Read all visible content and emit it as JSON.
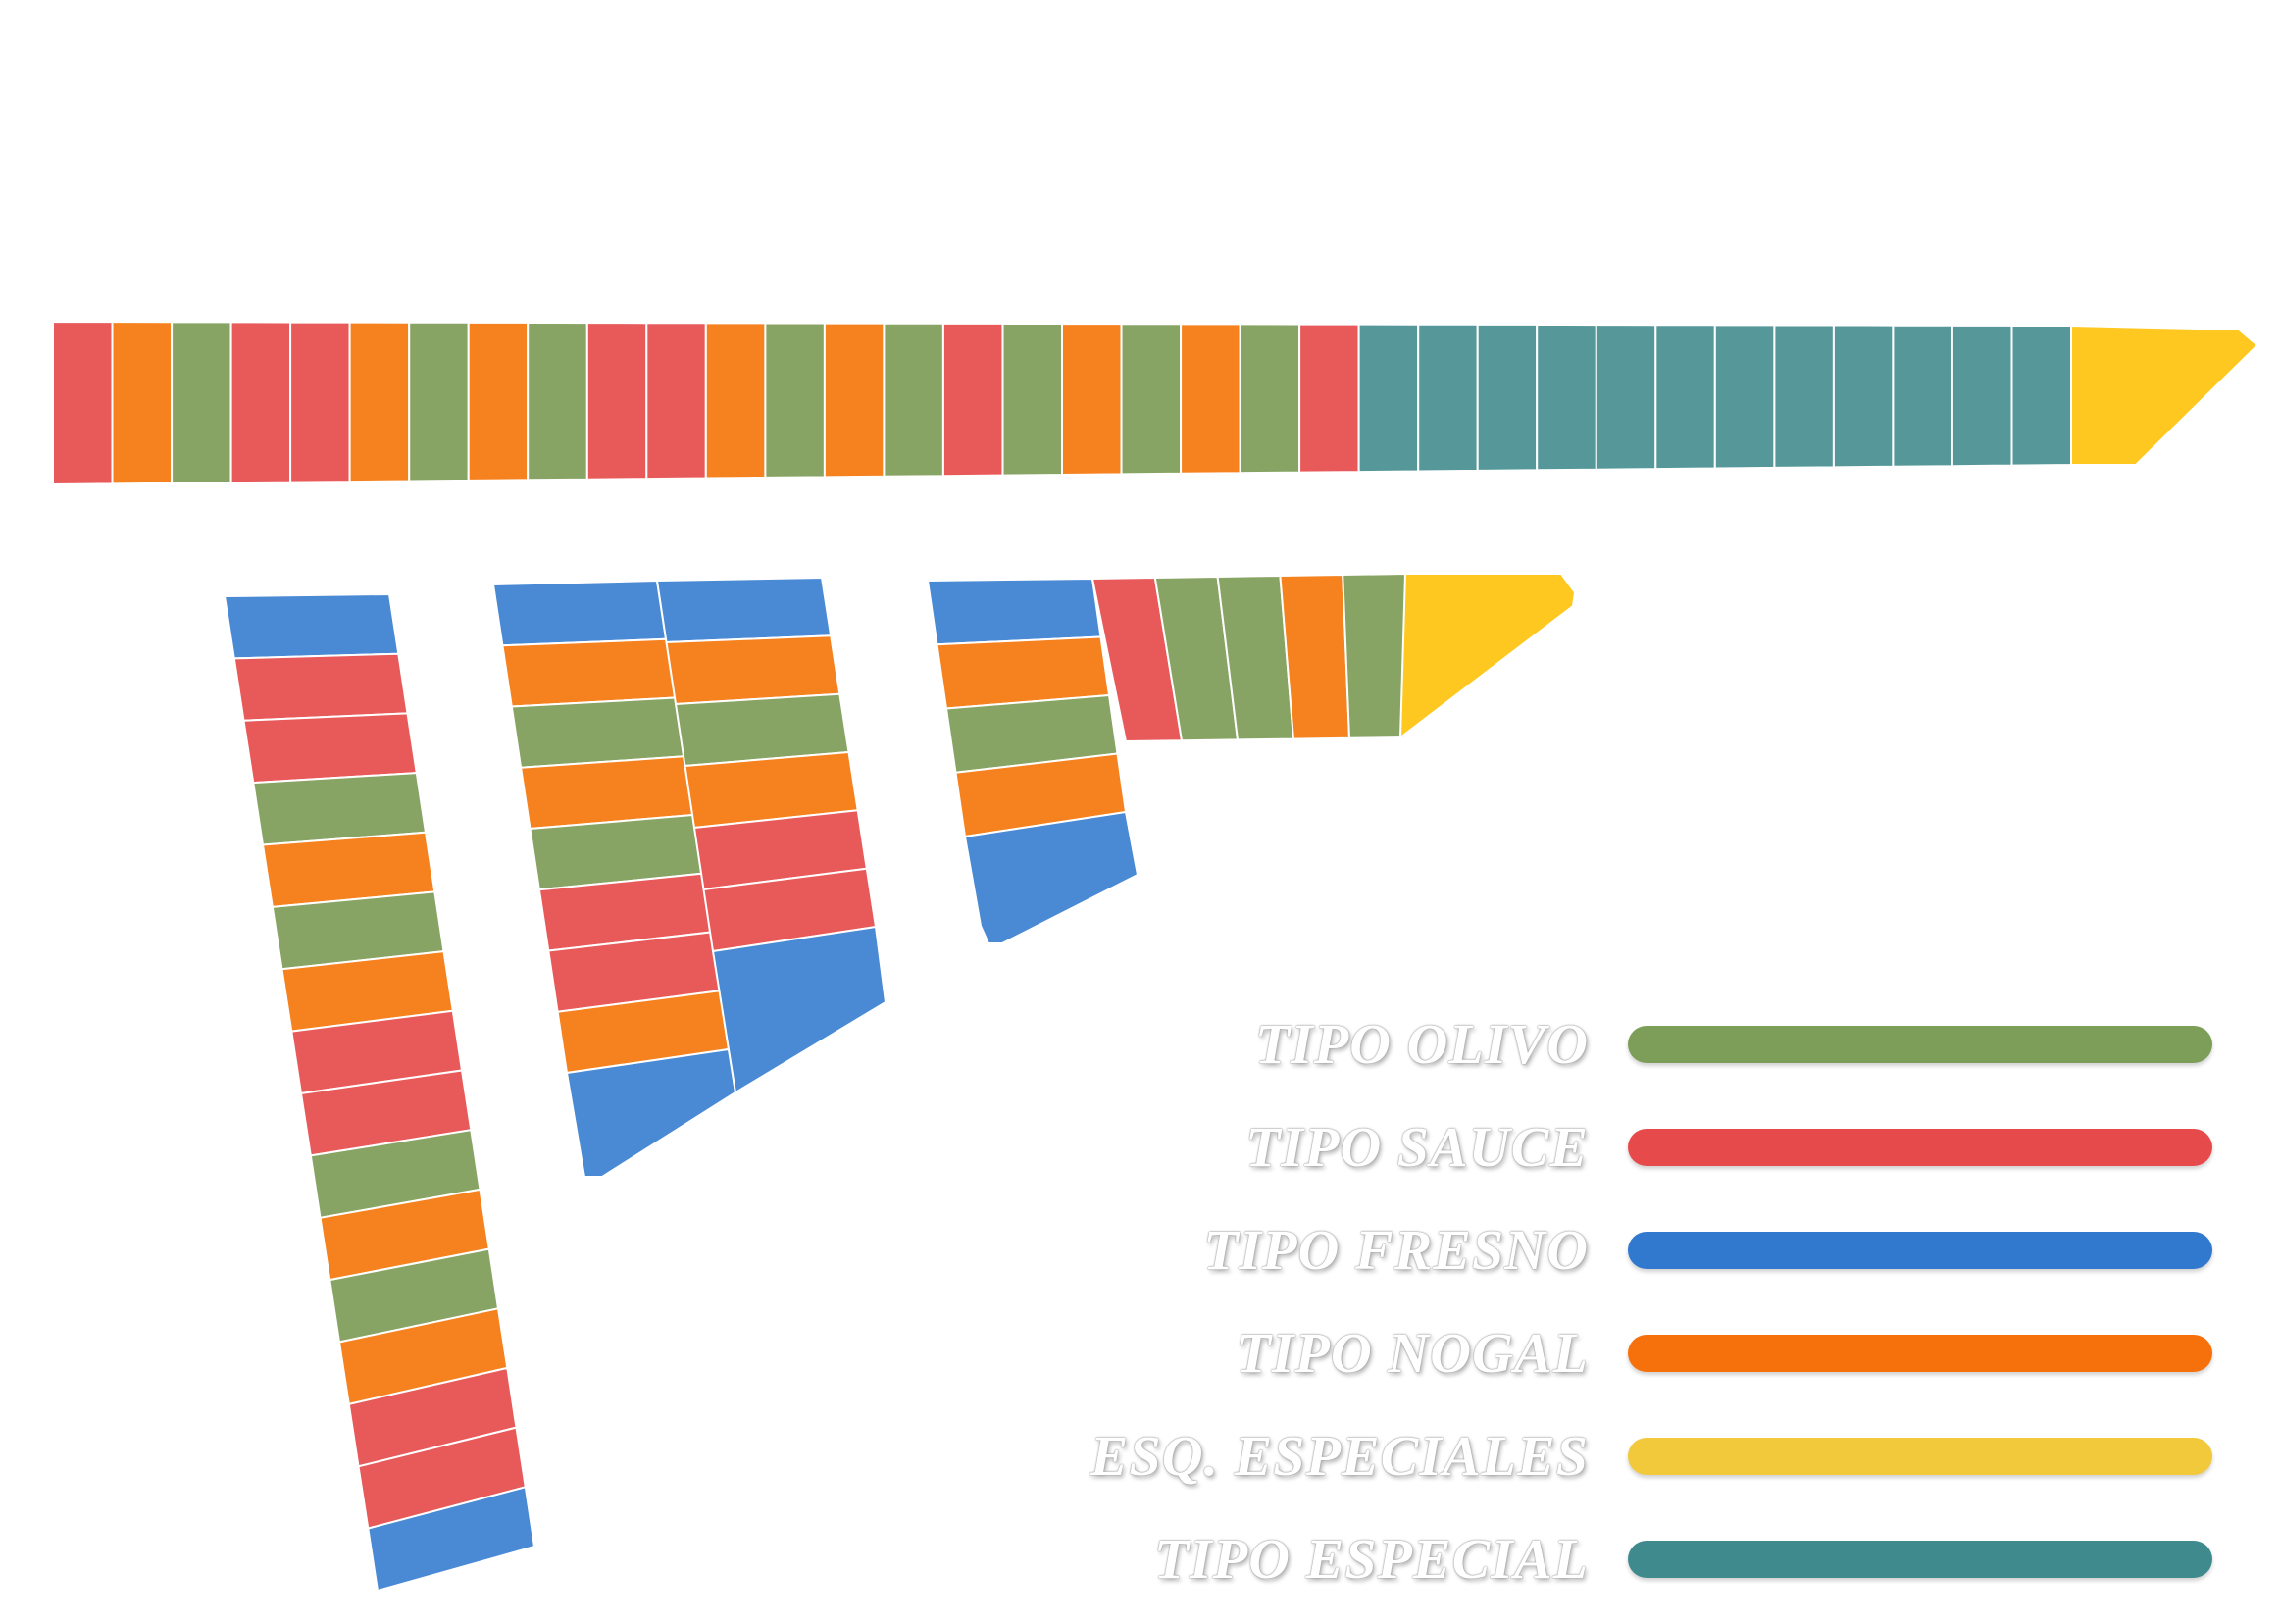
{
  "palette": {
    "olivo": "#88a464",
    "sauce": "#e85a5a",
    "fresno": "#4a8ad4",
    "nogal": "#f5821f",
    "especiales": "#fec820",
    "especial": "#56989a"
  },
  "legend": {
    "items": [
      {
        "id": "olivo",
        "label": "TIPO OLIVO",
        "color": "#7c9e58"
      },
      {
        "id": "sauce",
        "label": "TIPO SAUCE",
        "color": "#e64a4a"
      },
      {
        "id": "fresno",
        "label": "TIPO FRESNO",
        "color": "#3179cf"
      },
      {
        "id": "nogal",
        "label": "TIPO NOGAL",
        "color": "#f6700b"
      },
      {
        "id": "especiales",
        "label": "ESQ. ESPECIALES",
        "color": "#f1c93b"
      },
      {
        "id": "especial",
        "label": "TIPO ESPECIAL",
        "color": "#3f8a8c"
      }
    ]
  },
  "sections": {
    "top_run": {
      "cells": [
        "sauce",
        "nogal",
        "olivo",
        "sauce",
        "sauce",
        "nogal",
        "olivo",
        "nogal",
        "olivo",
        "sauce",
        "sauce",
        "nogal",
        "olivo",
        "nogal",
        "olivo",
        "sauce",
        "olivo",
        "nogal",
        "olivo",
        "nogal",
        "olivo",
        "sauce",
        "especial",
        "especial",
        "especial",
        "especial",
        "especial",
        "especial",
        "especial",
        "especial",
        "especial",
        "especial",
        "especial",
        "especial"
      ],
      "end_piece": "especiales"
    },
    "column_a": {
      "cells": [
        "fresno",
        "sauce",
        "sauce",
        "olivo",
        "nogal",
        "olivo",
        "nogal",
        "sauce",
        "sauce",
        "olivo",
        "nogal",
        "olivo",
        "nogal",
        "sauce",
        "sauce",
        "fresno"
      ]
    },
    "column_b_left": {
      "cells": [
        "fresno",
        "nogal",
        "olivo",
        "nogal",
        "olivo",
        "sauce",
        "sauce",
        "nogal"
      ],
      "end_piece": "fresno"
    },
    "column_b_right": {
      "cells": [
        "fresno",
        "nogal",
        "olivo",
        "nogal",
        "sauce",
        "sauce"
      ],
      "end_piece": "fresno"
    },
    "column_c": {
      "cells": [
        "fresno",
        "nogal",
        "olivo",
        "nogal"
      ],
      "end_piece": "fresno"
    },
    "arm_c": {
      "cells": [
        "sauce",
        "olivo",
        "olivo",
        "nogal",
        "olivo"
      ],
      "end_piece": "especiales"
    }
  }
}
